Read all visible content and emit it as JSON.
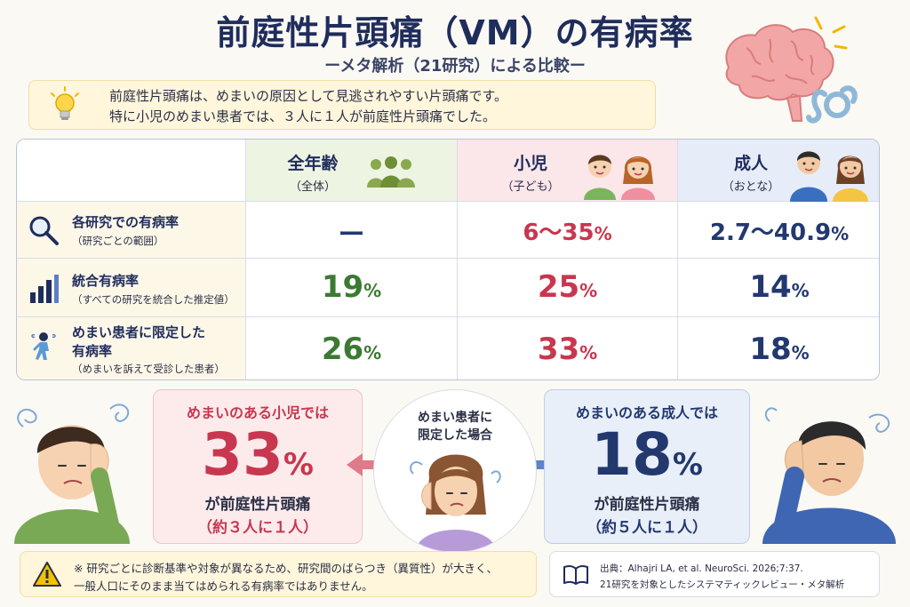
{
  "header": {
    "title": "前庭性片頭痛（VM）の有病率",
    "subtitle": "ーメタ解析（21研究）による比較ー"
  },
  "intro": {
    "line1": "前庭性片頭痛は、めまいの原因として見逃されやすい片頭痛です。",
    "line2": "特に小児のめまい患者では、３人に１人が前庭性片頭痛でした。"
  },
  "table": {
    "columns": [
      {
        "name": "全年齢",
        "sub": "（全体）"
      },
      {
        "name": "小児",
        "sub": "（子ども）"
      },
      {
        "name": "成人",
        "sub": "（おとな）"
      }
    ],
    "rows": [
      {
        "label": "各研究での有病率",
        "label2": "",
        "sub": "（研究ごとの範囲）",
        "values": [
          {
            "num": "ー",
            "pct": ""
          },
          {
            "num": "6～35",
            "pct": "%"
          },
          {
            "num": "2.7～40.9",
            "pct": "%"
          }
        ]
      },
      {
        "label": "統合有病率",
        "label2": "",
        "sub": "（すべての研究を統合した推定値）",
        "values": [
          {
            "num": "19",
            "pct": "%"
          },
          {
            "num": "25",
            "pct": "%"
          },
          {
            "num": "14",
            "pct": "%"
          }
        ]
      },
      {
        "label": "めまい患者に限定した",
        "label2": "有病率",
        "sub": "（めまいを訴えて受診した患者）",
        "values": [
          {
            "num": "26",
            "pct": "%"
          },
          {
            "num": "33",
            "pct": "%"
          },
          {
            "num": "18",
            "pct": "%"
          }
        ]
      }
    ]
  },
  "child_panel": {
    "title": "めまいのある小児では",
    "num": "33",
    "pct": "%",
    "line": "が前庭性片頭痛",
    "paren": "（約３人に１人）"
  },
  "center": {
    "line1": "めまい患者に",
    "line2": "限定した場合"
  },
  "adult_panel": {
    "title": "めまいのある成人では",
    "num": "18",
    "pct": "%",
    "line": "が前庭性片頭痛",
    "paren": "（約５人に１人）"
  },
  "note": {
    "line1": "※ 研究ごとに診断基準や対象が異なるため、研究間のばらつき（異質性）が大きく、",
    "line2": "一般人口にそのまま当てはめられる有病率ではありません。"
  },
  "source": {
    "line1": "出典：Alhajri LA, et al. NeuroSci. 2026;7:37.",
    "line2": "21研究を対象としたシステマティックレビュー・メタ解析"
  },
  "colors": {
    "all": "#3c7a33",
    "child": "#c8374f",
    "adult": "#22386f",
    "title": "#1f2d5c"
  },
  "icons": {
    "intro": "lightbulb-icon",
    "row1": "magnifier-icon",
    "row2": "bar-chart-icon",
    "row3": "dizzy-person-icon",
    "note": "warning-icon",
    "source": "book-icon"
  }
}
